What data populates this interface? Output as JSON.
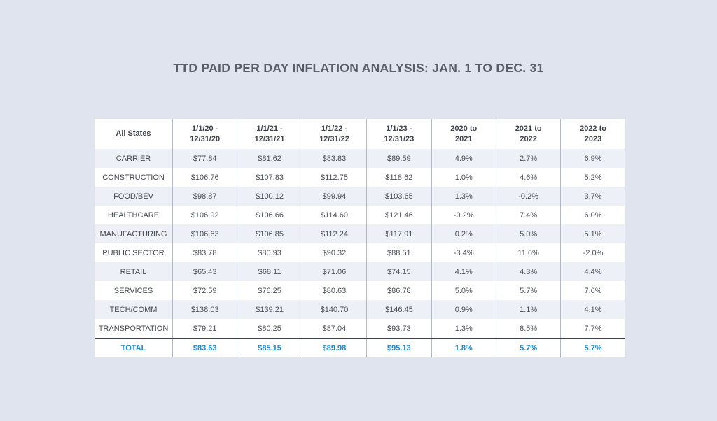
{
  "page_title": "TTD PAID PER DAY INFLATION ANALYSIS: JAN. 1 TO DEC. 31",
  "colors": {
    "page_bg": "#dfe4ee",
    "row_shaded": "#edf0f6",
    "row_white": "#ffffff",
    "column_divider": "#b3b8c1",
    "total_divider": "#3c414b",
    "accent_blue": "#2387c8",
    "text_dark": "#4c4f58",
    "title_gray": "#5b5e66"
  },
  "table": {
    "header": [
      {
        "lines": [
          "All States"
        ]
      },
      {
        "lines": [
          "1/1/20 -",
          "12/31/20"
        ]
      },
      {
        "lines": [
          "1/1/21 -",
          "12/31/21"
        ]
      },
      {
        "lines": [
          "1/1/22 -",
          "12/31/22"
        ]
      },
      {
        "lines": [
          "1/1/23 -",
          "12/31/23"
        ]
      },
      {
        "lines": [
          "2020 to",
          "2021"
        ]
      },
      {
        "lines": [
          "2021 to",
          "2022"
        ]
      },
      {
        "lines": [
          "2022 to",
          "2023"
        ]
      }
    ],
    "rows": [
      {
        "label": "CARRIER",
        "values": [
          "$77.84",
          "$81.62",
          "$83.83",
          "$89.59",
          "4.9%",
          "2.7%",
          "6.9%"
        ]
      },
      {
        "label": "CONSTRUCTION",
        "values": [
          "$106.76",
          "$107.83",
          "$112.75",
          "$118.62",
          "1.0%",
          "4.6%",
          "5.2%"
        ]
      },
      {
        "label": "FOOD/BEV",
        "values": [
          "$98.87",
          "$100.12",
          "$99.94",
          "$103.65",
          "1.3%",
          "-0.2%",
          "3.7%"
        ]
      },
      {
        "label": "HEALTHCARE",
        "values": [
          "$106.92",
          "$106.66",
          "$114.60",
          "$121.46",
          "-0.2%",
          "7.4%",
          "6.0%"
        ]
      },
      {
        "label": "MANUFACTURING",
        "values": [
          "$106.63",
          "$106.85",
          "$112.24",
          "$117.91",
          "0.2%",
          "5.0%",
          "5.1%"
        ]
      },
      {
        "label": "PUBLIC SECTOR",
        "values": [
          "$83.78",
          "$80.93",
          "$90.32",
          "$88.51",
          "-3.4%",
          "11.6%",
          "-2.0%"
        ]
      },
      {
        "label": "RETAIL",
        "values": [
          "$65.43",
          "$68.11",
          "$71.06",
          "$74.15",
          "4.1%",
          "4.3%",
          "4.4%"
        ]
      },
      {
        "label": "SERVICES",
        "values": [
          "$72.59",
          "$76.25",
          "$80.63",
          "$86.78",
          "5.0%",
          "5.7%",
          "7.6%"
        ]
      },
      {
        "label": "TECH/COMM",
        "values": [
          "$138.03",
          "$139.21",
          "$140.70",
          "$146.45",
          "0.9%",
          "1.1%",
          "4.1%"
        ]
      },
      {
        "label": "TRANSPORTATION",
        "values": [
          "$79.21",
          "$80.25",
          "$87.04",
          "$93.73",
          "1.3%",
          "8.5%",
          "7.7%"
        ]
      }
    ],
    "total_row": {
      "label": "TOTAL",
      "values": [
        "$83.63",
        "$85.15",
        "$89.98",
        "$95.13",
        "1.8%",
        "5.7%",
        "5.7%"
      ]
    }
  },
  "chart_data": {
    "type": "table",
    "title": "TTD PAID PER DAY INFLATION ANALYSIS: JAN. 1 TO DEC. 31",
    "columns": [
      "All States",
      "1/1/20 - 12/31/20",
      "1/1/21 - 12/31/21",
      "1/1/22 - 12/31/22",
      "1/1/23 - 12/31/23",
      "2020 to 2021",
      "2021 to 2022",
      "2022 to 2023"
    ],
    "rows": [
      {
        "label": "CARRIER",
        "paid_per_day": [
          77.84,
          81.62,
          83.83,
          89.59
        ],
        "pct_change": [
          4.9,
          2.7,
          6.9
        ]
      },
      {
        "label": "CONSTRUCTION",
        "paid_per_day": [
          106.76,
          107.83,
          112.75,
          118.62
        ],
        "pct_change": [
          1.0,
          4.6,
          5.2
        ]
      },
      {
        "label": "FOOD/BEV",
        "paid_per_day": [
          98.87,
          100.12,
          99.94,
          103.65
        ],
        "pct_change": [
          1.3,
          -0.2,
          3.7
        ]
      },
      {
        "label": "HEALTHCARE",
        "paid_per_day": [
          106.92,
          106.66,
          114.6,
          121.46
        ],
        "pct_change": [
          -0.2,
          7.4,
          6.0
        ]
      },
      {
        "label": "MANUFACTURING",
        "paid_per_day": [
          106.63,
          106.85,
          112.24,
          117.91
        ],
        "pct_change": [
          0.2,
          5.0,
          5.1
        ]
      },
      {
        "label": "PUBLIC SECTOR",
        "paid_per_day": [
          83.78,
          80.93,
          90.32,
          88.51
        ],
        "pct_change": [
          -3.4,
          11.6,
          -2.0
        ]
      },
      {
        "label": "RETAIL",
        "paid_per_day": [
          65.43,
          68.11,
          71.06,
          74.15
        ],
        "pct_change": [
          4.1,
          4.3,
          4.4
        ]
      },
      {
        "label": "SERVICES",
        "paid_per_day": [
          72.59,
          76.25,
          80.63,
          86.78
        ],
        "pct_change": [
          5.0,
          5.7,
          7.6
        ]
      },
      {
        "label": "TECH/COMM",
        "paid_per_day": [
          138.03,
          139.21,
          140.7,
          146.45
        ],
        "pct_change": [
          0.9,
          1.1,
          4.1
        ]
      },
      {
        "label": "TRANSPORTATION",
        "paid_per_day": [
          79.21,
          80.25,
          87.04,
          93.73
        ],
        "pct_change": [
          1.3,
          8.5,
          7.7
        ]
      },
      {
        "label": "TOTAL",
        "paid_per_day": [
          83.63,
          85.15,
          89.98,
          95.13
        ],
        "pct_change": [
          1.8,
          5.7,
          5.7
        ]
      }
    ]
  }
}
